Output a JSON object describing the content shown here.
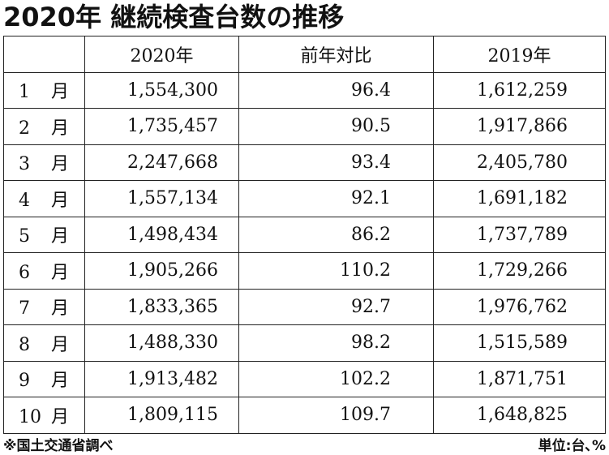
{
  "title": "2020年 継続検査台数の推移",
  "table": {
    "headers": [
      "",
      "2020年",
      "前年対比",
      "2019年"
    ],
    "rows": [
      {
        "num": "1",
        "unit": "月",
        "v2020": "1,554,300",
        "yoy": "96.4",
        "v2019": "1,612,259"
      },
      {
        "num": "2",
        "unit": "月",
        "v2020": "1,735,457",
        "yoy": "90.5",
        "v2019": "1,917,866"
      },
      {
        "num": "3",
        "unit": "月",
        "v2020": "2,247,668",
        "yoy": "93.4",
        "v2019": "2,405,780"
      },
      {
        "num": "4",
        "unit": "月",
        "v2020": "1,557,134",
        "yoy": "92.1",
        "v2019": "1,691,182"
      },
      {
        "num": "5",
        "unit": "月",
        "v2020": "1,498,434",
        "yoy": "86.2",
        "v2019": "1,737,789"
      },
      {
        "num": "6",
        "unit": "月",
        "v2020": "1,905,266",
        "yoy": "110.2",
        "v2019": "1,729,266"
      },
      {
        "num": "7",
        "unit": "月",
        "v2020": "1,833,365",
        "yoy": "92.7",
        "v2019": "1,976,762"
      },
      {
        "num": "8",
        "unit": "月",
        "v2020": "1,488,330",
        "yoy": "98.2",
        "v2019": "1,515,589"
      },
      {
        "num": "9",
        "unit": "月",
        "v2020": "1,913,482",
        "yoy": "102.2",
        "v2019": "1,871,751"
      },
      {
        "num": "10",
        "unit": "月",
        "v2020": "1,809,115",
        "yoy": "109.7",
        "v2019": "1,648,825"
      }
    ]
  },
  "footer": {
    "source": "※国土交通省調べ",
    "unit": "単位:台､%"
  }
}
